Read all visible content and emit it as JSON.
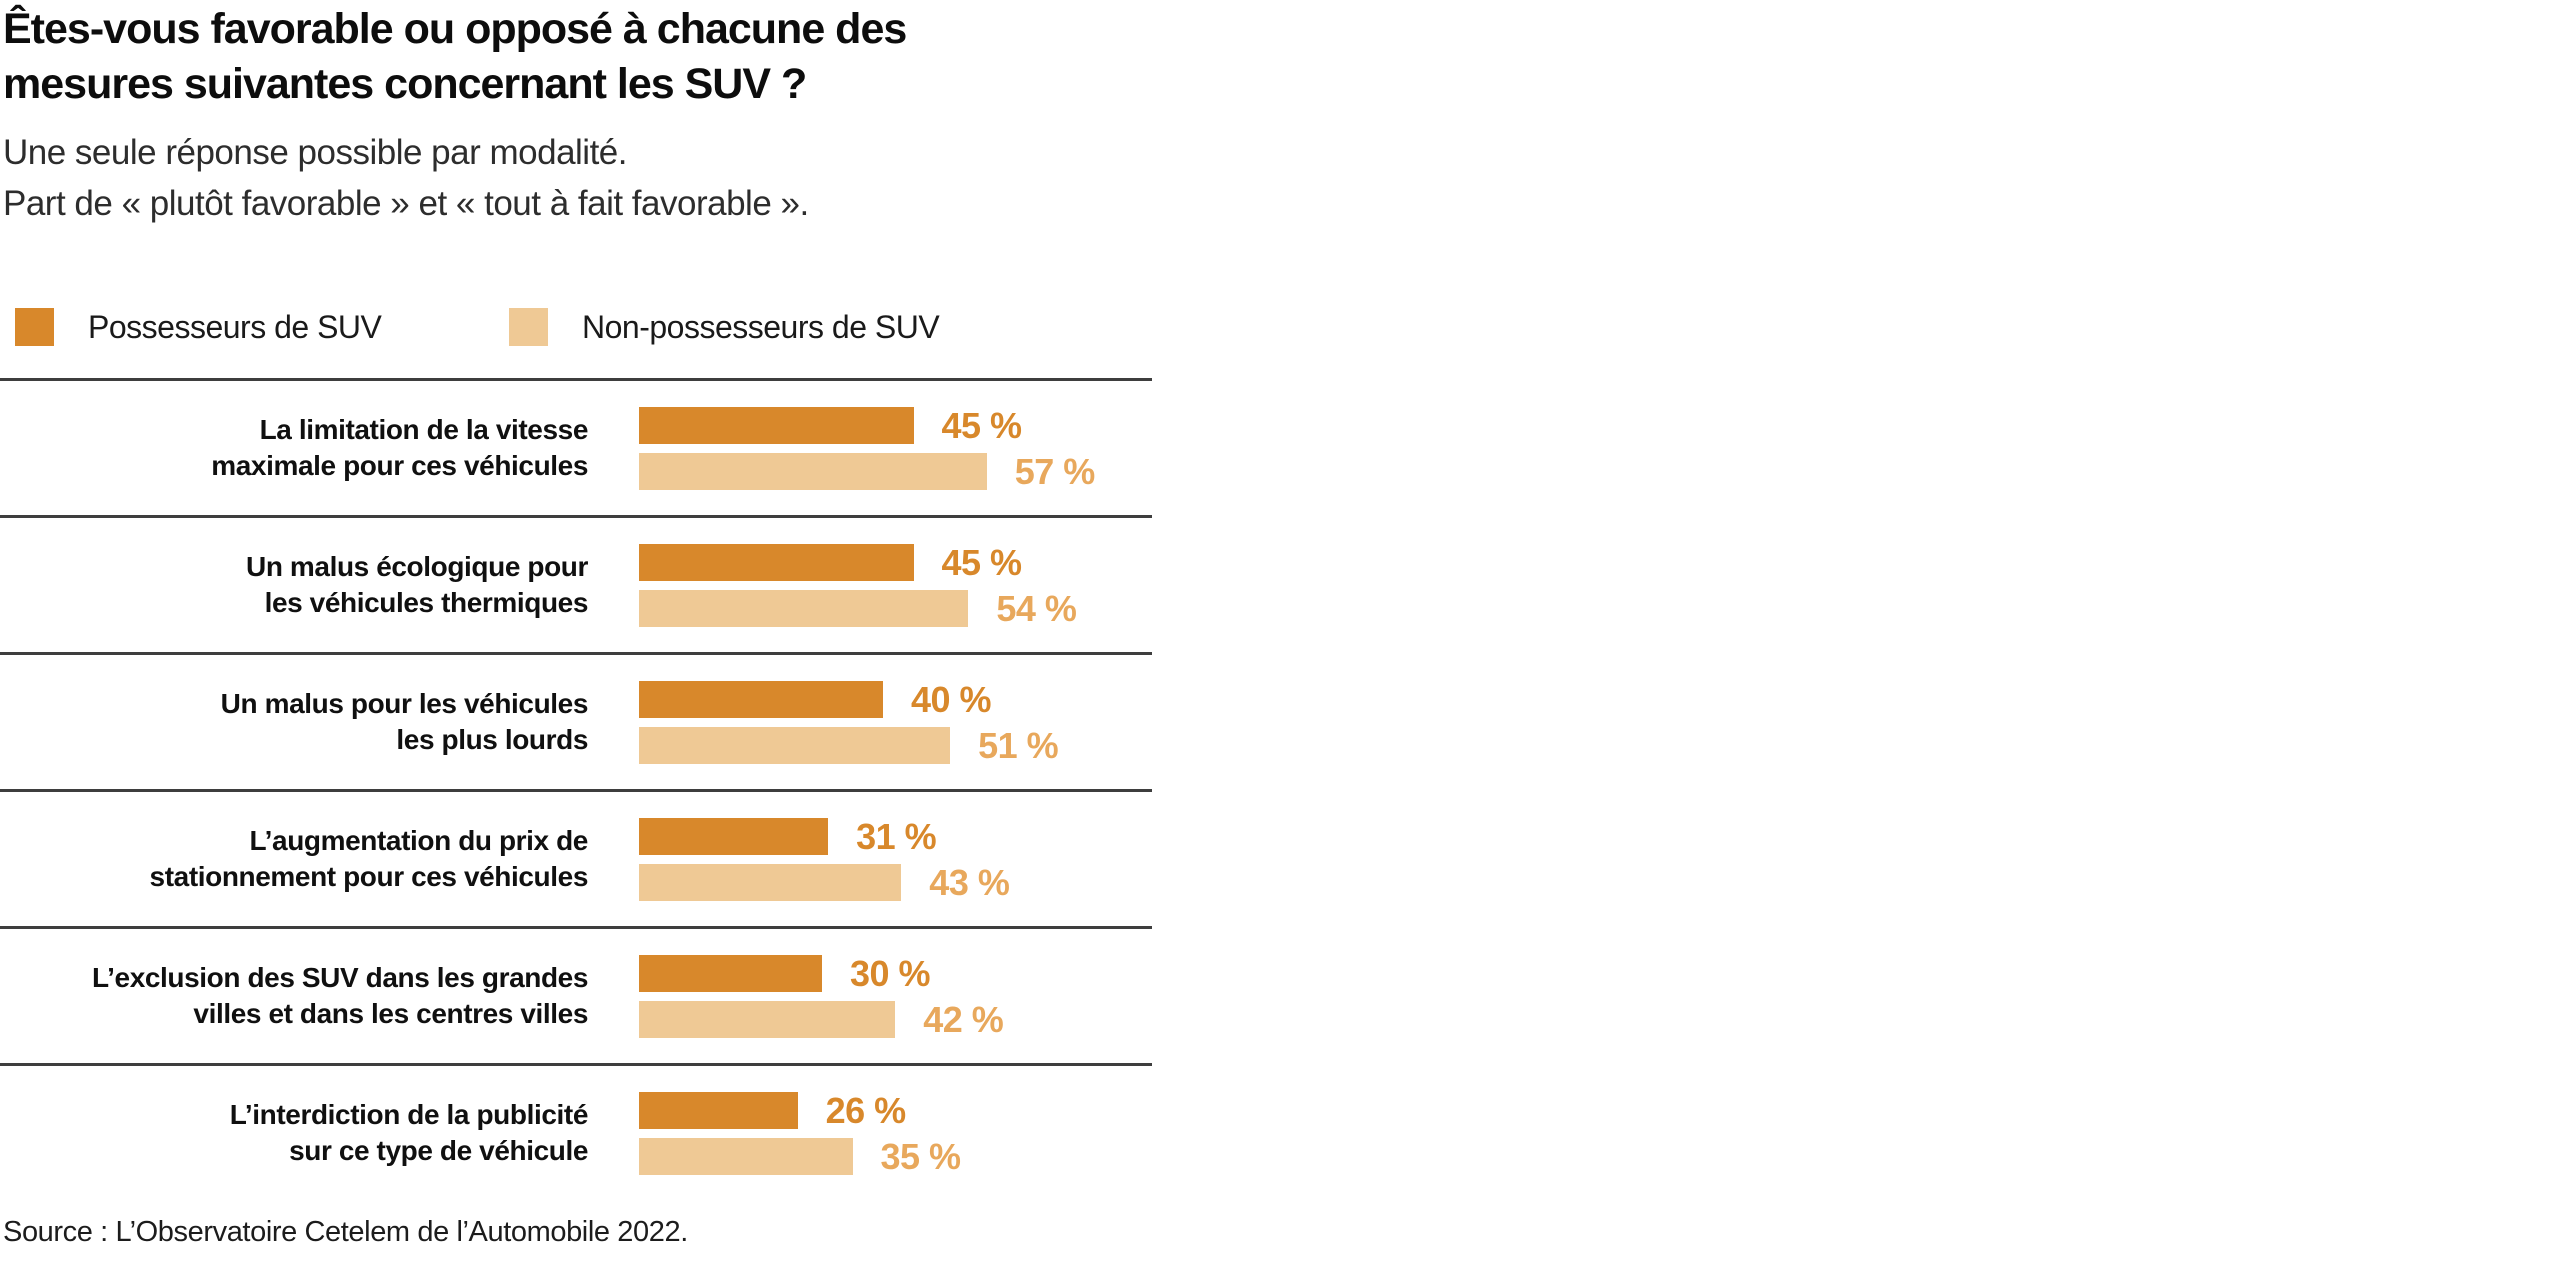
{
  "header": {
    "title": "Êtes-vous favorable ou opposé à chacune des\nmesures suivantes concernant les SUV ?",
    "subtitle_line1": "Une seule réponse possible par modalité.",
    "subtitle_line2": "Part de « plutôt favorable » et « tout à fait favorable »."
  },
  "legend": [
    {
      "label": "Possesseurs de SUV",
      "color": "#d8882b"
    },
    {
      "label": "Non-possesseurs de SUV",
      "color": "#efc995"
    }
  ],
  "chart_data": {
    "type": "bar",
    "orientation": "horizontal",
    "title": "Êtes-vous favorable ou opposé à chacune des mesures suivantes concernant les SUV ?",
    "unit": "%",
    "value_suffix": " %",
    "xlim": [
      0,
      100
    ],
    "grid": false,
    "legend_position": "top",
    "categories": [
      "La limitation de la vitesse\nmaximale pour ces véhicules",
      "Un malus écologique pour\nles véhicules thermiques",
      "Un malus pour les véhicules\nles plus lourds",
      "L’augmentation du prix de\nstationnement pour ces véhicules",
      "L’exclusion des SUV dans les grandes\nvilles et dans les centres villes",
      "L’interdiction de la publicité\nsur ce type de véhicule"
    ],
    "series": [
      {
        "name": "Possesseurs de SUV",
        "color": "#d8882b",
        "label_color": "#d8882b",
        "values": [
          45,
          45,
          40,
          31,
          30,
          26
        ]
      },
      {
        "name": "Non-possesseurs de SUV",
        "color": "#efc995",
        "label_color": "#e8a85c",
        "values": [
          57,
          54,
          51,
          43,
          42,
          35
        ]
      }
    ]
  },
  "source": "Source : L’Observatoire Cetelem de l’Automobile 2022."
}
